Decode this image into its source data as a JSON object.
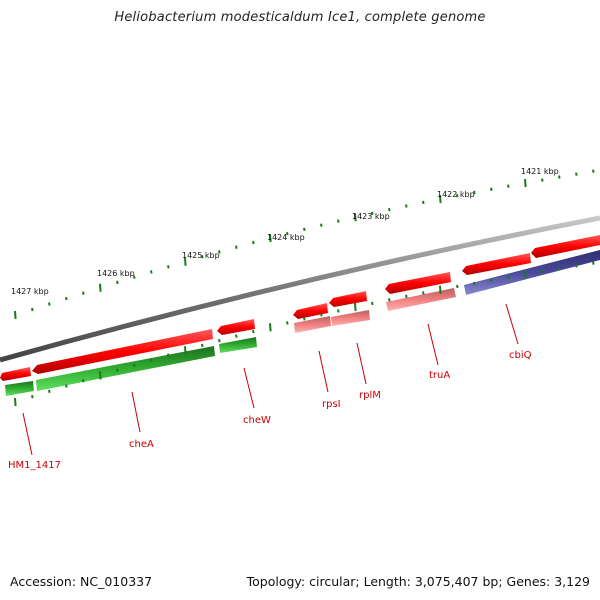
{
  "title": "Heliobacterium modesticaldum Ice1, complete genome",
  "footer": {
    "accession": "Accession: NC_010337",
    "topology": "Topology: circular; Length: 3,075,407 bp; Genes: 3,129"
  },
  "colors": {
    "backbone": "#888888",
    "forward_gene": "#ff0000",
    "reverse_gene_green": "#2ea82e",
    "pale_gene": "#f08080",
    "purple_gene": "#4a4a9a",
    "tick": "#1a7a1a",
    "label": "#cc0000"
  },
  "scale_labels": [
    "1421 kbp",
    "1422 kbp",
    "1423 kbp",
    "1424 kbp",
    "1425 kbp",
    "1426 kbp",
    "1427 kbp"
  ],
  "gene_labels": [
    "HM1_1417",
    "cheA",
    "cheW",
    "rpsI",
    "rplM",
    "truA",
    "cbiQ"
  ]
}
